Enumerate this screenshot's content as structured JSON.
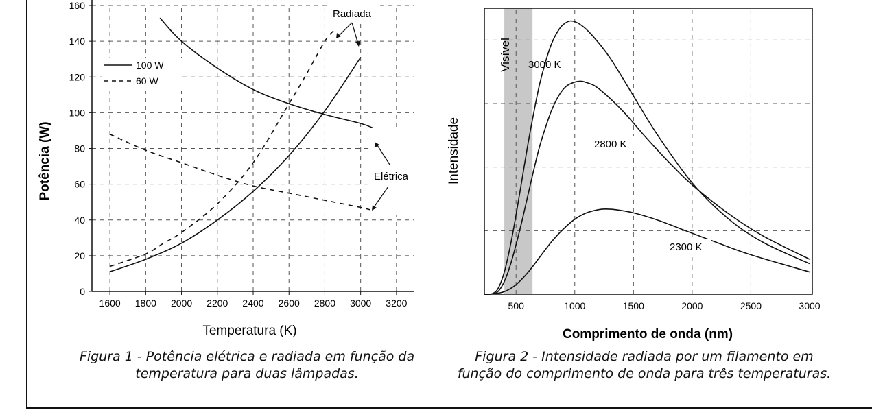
{
  "chart_data": [
    {
      "type": "line",
      "xlabel": "Temperatura (K)",
      "ylabel": "Potência (W)",
      "xlim": [
        1500,
        3300
      ],
      "ylim": [
        0,
        160
      ],
      "xticks": [
        1600,
        1800,
        2000,
        2200,
        2400,
        2600,
        2800,
        3000,
        3200
      ],
      "yticks": [
        0,
        20,
        40,
        60,
        80,
        100,
        120,
        140,
        160
      ],
      "grid": true,
      "legend_position": "top-left",
      "legend": [
        {
          "label": "100 W",
          "style": "solid"
        },
        {
          "label": "60 W",
          "style": "dashed"
        }
      ],
      "annotations": [
        "Radiada",
        "Elétrica"
      ],
      "series": [
        {
          "name": "100 W",
          "kind": "Elétrica",
          "style": "solid",
          "x": [
            1880,
            2000,
            2200,
            2400,
            2600,
            2800,
            3000,
            3080
          ],
          "y": [
            153,
            140,
            125,
            113,
            105,
            99,
            94,
            91
          ]
        },
        {
          "name": "100 W",
          "kind": "Radiada",
          "style": "solid",
          "x": [
            1600,
            1800,
            2000,
            2200,
            2400,
            2600,
            2800,
            3000
          ],
          "y": [
            11,
            18,
            27,
            40,
            56,
            76,
            101,
            131
          ]
        },
        {
          "name": "60 W",
          "kind": "Elétrica",
          "style": "dashed",
          "x": [
            1600,
            1800,
            2000,
            2200,
            2400,
            2600,
            2800,
            3000,
            3080
          ],
          "y": [
            88,
            79,
            72,
            65,
            59,
            55,
            51,
            47,
            45
          ]
        },
        {
          "name": "60 W",
          "kind": "Radiada",
          "style": "dashed",
          "x": [
            1600,
            1800,
            1900,
            2000,
            2200,
            2400,
            2600,
            2700,
            2800,
            2850
          ],
          "y": [
            14,
            21,
            27,
            33,
            49,
            72,
            105,
            122,
            140,
            146
          ]
        }
      ],
      "caption": "Figura 1 - Potência elétrica e radiada em função da temperatura para duas lâmpadas."
    },
    {
      "type": "line",
      "xlabel": "Comprimento de onda (nm)",
      "ylabel": "Intensidade",
      "xlim": [
        230,
        3000
      ],
      "ylim": [
        0,
        4.5
      ],
      "xticks": [
        500,
        1000,
        1500,
        2000,
        2500,
        3000
      ],
      "grid": true,
      "band": {
        "label": "Visível",
        "x": [
          400,
          640
        ],
        "color": "#c8c8c8"
      },
      "series": [
        {
          "name": "3000 K",
          "x": [
            230,
            300,
            350,
            400,
            450,
            500,
            550,
            600,
            650,
            700,
            750,
            800,
            850,
            900,
            966,
            1050,
            1150,
            1300,
            1500,
            1700,
            2000,
            2300,
            2600,
            3000
          ],
          "y": [
            0,
            0.01,
            0.1,
            0.35,
            0.75,
            1.25,
            1.8,
            2.35,
            2.85,
            3.3,
            3.65,
            3.93,
            4.12,
            4.24,
            4.3,
            4.24,
            4.07,
            3.72,
            3.12,
            2.52,
            1.75,
            1.2,
            0.82,
            0.48
          ]
        },
        {
          "name": "2800 K",
          "x": [
            230,
            300,
            350,
            400,
            450,
            500,
            550,
            600,
            650,
            700,
            750,
            800,
            850,
            900,
            950,
            1035,
            1100,
            1200,
            1400,
            1600,
            1800,
            2000,
            2300,
            2600,
            3000
          ],
          "y": [
            0,
            0.005,
            0.05,
            0.2,
            0.45,
            0.78,
            1.15,
            1.55,
            1.95,
            2.32,
            2.62,
            2.88,
            3.08,
            3.22,
            3.3,
            3.35,
            3.33,
            3.24,
            2.9,
            2.48,
            2.08,
            1.72,
            1.28,
            0.92,
            0.55
          ]
        },
        {
          "name": "2300 K",
          "x": [
            230,
            300,
            400,
            500,
            600,
            700,
            800,
            900,
            1000,
            1100,
            1200,
            1260,
            1350,
            1500,
            1700,
            1900,
            2200,
            2500,
            3000
          ],
          "y": [
            0,
            0.003,
            0.04,
            0.15,
            0.34,
            0.58,
            0.82,
            1.02,
            1.18,
            1.28,
            1.33,
            1.34,
            1.33,
            1.28,
            1.17,
            1.03,
            0.82,
            0.62,
            0.35
          ]
        }
      ],
      "caption": "Figura 2 - Intensidade radiada por um filamento em função do comprimento de onda para três temperaturas."
    }
  ],
  "figure1": {
    "xlabel": "Temperatura (K)",
    "ylabel": "Potência (W)",
    "xtick_labels": [
      "1600",
      "1800",
      "2000",
      "2200",
      "2400",
      "2600",
      "2800",
      "3000",
      "3200"
    ],
    "ytick_labels": [
      "0",
      "20",
      "40",
      "60",
      "80",
      "100",
      "120",
      "140",
      "160"
    ],
    "legend_solid": "100 W",
    "legend_dashed": "60 W",
    "annotation_radiada": "Radiada",
    "annotation_eletrica": "Elétrica",
    "caption_line1": "Figura 1 - Potência elétrica e radiada em função da",
    "caption_line2": "temperatura para duas lâmpadas."
  },
  "figure2": {
    "xlabel": "Comprimento de onda (nm)",
    "ylabel": "Intensidade",
    "xtick_labels": [
      "500",
      "1000",
      "1500",
      "2000",
      "2500",
      "3000"
    ],
    "band_label": "Visível",
    "label_3000": "3000 K",
    "label_2800": "2800 K",
    "label_2300": "2300 K",
    "caption_line1": "Figura 2 - Intensidade radiada por um filamento em",
    "caption_line2": "função do comprimento de onda para três temperaturas."
  }
}
